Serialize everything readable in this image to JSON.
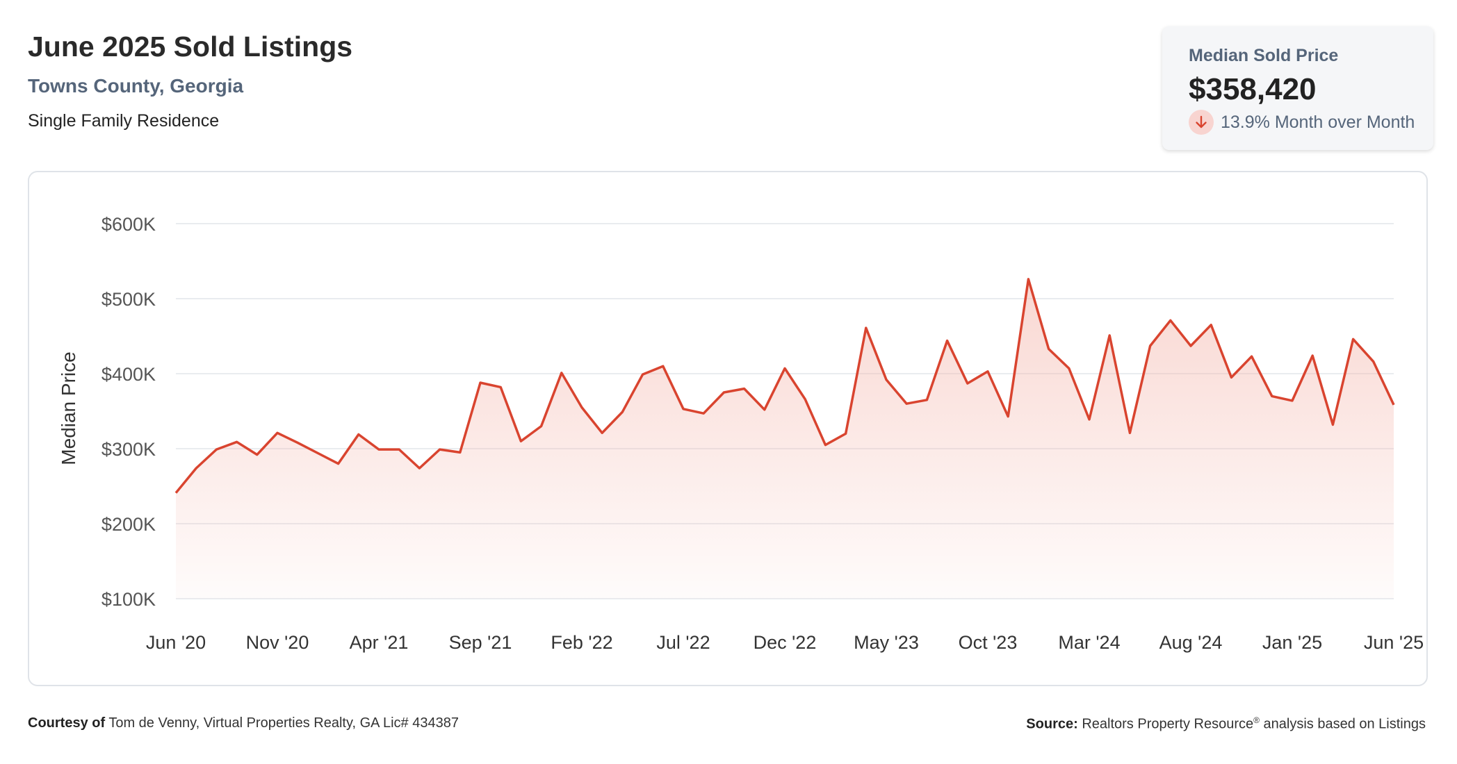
{
  "header": {
    "title": "June 2025 Sold Listings",
    "location": "Towns County, Georgia",
    "property_type": "Single Family Residence"
  },
  "stat_card": {
    "label": "Median Sold Price",
    "value": "$358,420",
    "change": "13.9% Month over Month",
    "change_direction": "down",
    "icon": "arrow-down-icon"
  },
  "colors": {
    "line": "#d9442f",
    "fill": "#f4b7ad",
    "grid": "#e2e5ea",
    "axis_text": "#555555",
    "subtitle": "#55657a"
  },
  "chart_data": {
    "type": "area",
    "ylabel": "Median Price",
    "ylim": [
      100000,
      600000
    ],
    "yticks": [
      100000,
      200000,
      300000,
      400000,
      500000,
      600000
    ],
    "ytick_labels": [
      "$100K",
      "$200K",
      "$300K",
      "$400K",
      "$500K",
      "$600K"
    ],
    "xtick_labels": [
      "Jun '20",
      "Nov '20",
      "Apr '21",
      "Sep '21",
      "Feb '22",
      "Jul '22",
      "Dec '22",
      "May '23",
      "Oct '23",
      "Mar '24",
      "Aug '24",
      "Jan '25",
      "Jun '25"
    ],
    "xtick_step_months": 5,
    "grid": true,
    "series": [
      {
        "values": [
          241000,
          274000,
          299000,
          309000,
          292000,
          321000,
          308000,
          294000,
          280000,
          319000,
          299000,
          299000,
          274000,
          299000,
          295000,
          388000,
          382000,
          310000,
          330000,
          401000,
          355000,
          321000,
          349000,
          399000,
          410000,
          353000,
          347000,
          375000,
          380000,
          352000,
          407000,
          366000,
          305000,
          320000,
          461000,
          392000,
          360000,
          365000,
          444000,
          387000,
          403000,
          343000,
          526000,
          433000,
          407000,
          339000,
          451000,
          321000,
          437000,
          471000,
          437000,
          465000,
          395000,
          423000,
          370000,
          364000,
          424000,
          332000,
          446000,
          416000,
          358420
        ]
      }
    ]
  },
  "footer": {
    "courtesy_label": "Courtesy of",
    "courtesy_text": "Tom de Venny, Virtual Properties Realty, GA Lic# 434387",
    "source_label": "Source:",
    "source_name": "Realtors Property Resource",
    "source_mark": "®",
    "source_text": "analysis based on Listings"
  }
}
